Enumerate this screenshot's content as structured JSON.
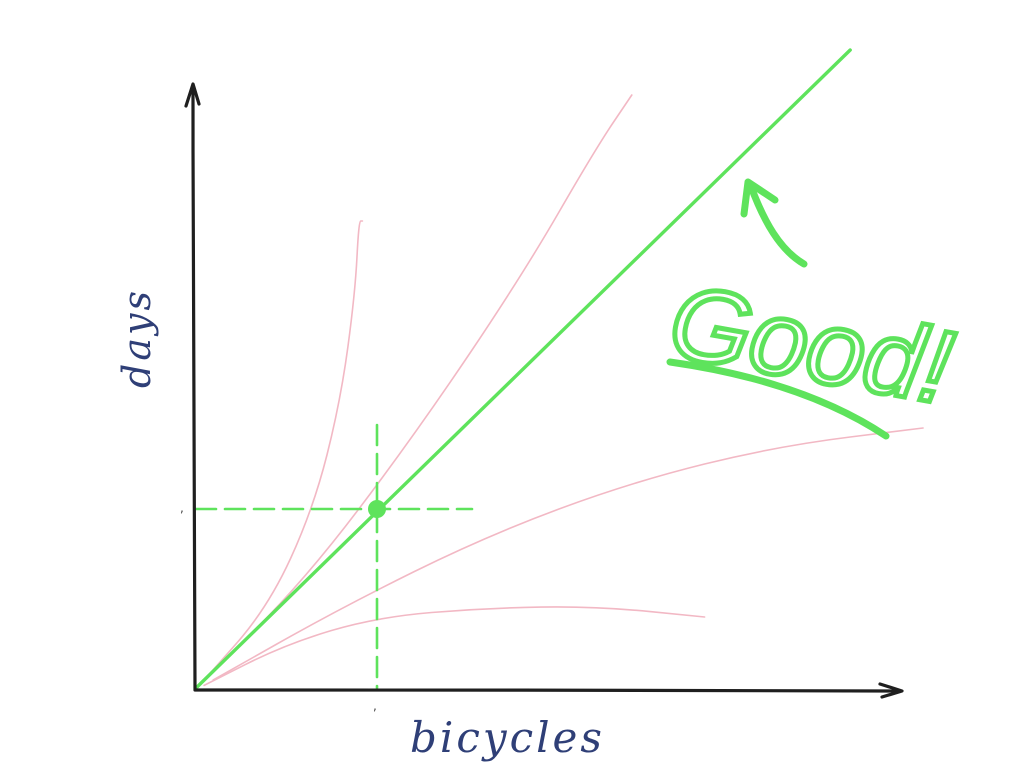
{
  "chart_data": {
    "type": "line",
    "xlabel": "bicycles",
    "ylabel": "days",
    "x_tick_labels": [
      ","
    ],
    "y_tick_labels": [
      ","
    ],
    "xlim": [
      0,
      3.9
    ],
    "ylim": [
      0,
      3.4
    ],
    "grid": false,
    "legend": "none",
    "series": [
      {
        "highlighted": true,
        "color": "#5ee35c",
        "x": [
          0,
          3.6
        ],
        "y": [
          0,
          3.55
        ]
      },
      {
        "highlighted": false,
        "color": "#f2b8c4",
        "x": [
          0.05,
          0.4,
          0.65,
          0.8,
          0.88,
          0.9,
          0.92
        ],
        "y": [
          0.05,
          0.45,
          1.0,
          1.6,
          2.2,
          2.6,
          2.6
        ]
      },
      {
        "highlighted": false,
        "color": "#f2b8c4",
        "x": [
          0.05,
          0.6,
          1.2,
          1.8,
          2.2,
          2.4
        ],
        "y": [
          0.05,
          0.6,
          1.4,
          2.3,
          3.0,
          3.3
        ]
      },
      {
        "highlighted": false,
        "color": "#f2b8c4",
        "x": [
          0.1,
          0.8,
          1.6,
          2.4,
          3.2,
          4.0
        ],
        "y": [
          0.05,
          0.45,
          0.85,
          1.15,
          1.35,
          1.45
        ]
      },
      {
        "highlighted": false,
        "color": "#f2b8c4",
        "x": [
          0.05,
          0.5,
          1.0,
          1.6,
          2.2,
          2.8
        ],
        "y": [
          0.02,
          0.25,
          0.4,
          0.45,
          0.46,
          0.4
        ]
      }
    ],
    "highlight_point": {
      "x": 1.0,
      "y": 1.0
    },
    "annotations": [
      "Good!"
    ]
  }
}
